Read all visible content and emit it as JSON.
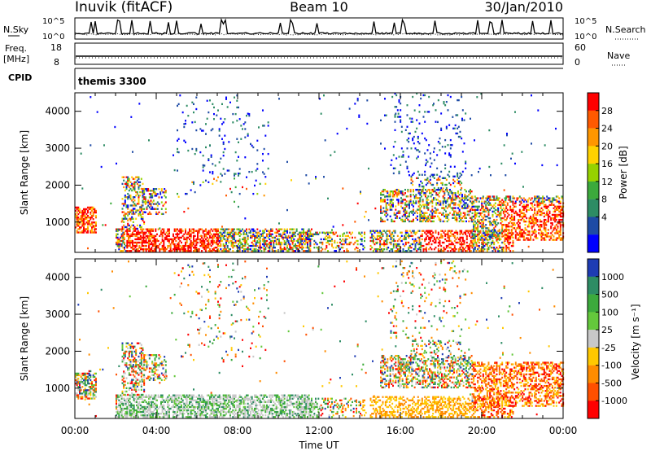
{
  "header": {
    "station": "Inuvik (fitACF)",
    "beam": "Beam 10",
    "date": "30/Jan/2010"
  },
  "top_panels": {
    "nsky_label": "N.Sky",
    "nsky_ticks": [
      "10^5",
      "10^0"
    ],
    "nsearch_label": "N.Search",
    "nsearch_ticks": [
      "10^5",
      "10^0"
    ],
    "freq_label": "Freq.",
    "freq_unit": "[MHz]",
    "freq_ticks": [
      "18",
      "8"
    ],
    "nave_label": "Nave",
    "nave_ticks": [
      "60",
      "0"
    ],
    "cpid_label": "CPID",
    "cpid_value": "themis 3300"
  },
  "chart_data": [
    {
      "type": "heatmap",
      "ylabel": "Slant Range [km]",
      "yticks": [
        1000,
        2000,
        3000,
        4000
      ],
      "ylim": [
        180,
        4500
      ],
      "xlim": [
        0,
        24
      ],
      "colorbar": {
        "title": "Power [dB]",
        "ticks": [
          "28",
          "24",
          "20",
          "16",
          "12",
          "8",
          "4"
        ],
        "colors": [
          "#ff0000",
          "#ff5a00",
          "#ff9600",
          "#ffd200",
          "#96d200",
          "#3caa3c",
          "#2d8c64",
          "#1e4ba5",
          "#0000ff"
        ]
      }
    },
    {
      "type": "heatmap",
      "ylabel": "Slant Range [km]",
      "xlabel": "Time UT",
      "xticks": [
        "00:00",
        "04:00",
        "08:00",
        "12:00",
        "16:00",
        "20:00",
        "00:00"
      ],
      "yticks": [
        1000,
        2000,
        3000,
        4000
      ],
      "ylim": [
        180,
        4500
      ],
      "xlim": [
        0,
        24
      ],
      "colorbar": {
        "title": "Velocity [m s⁻¹]",
        "ticks": [
          "1000",
          "500",
          "100",
          "25",
          "-25",
          "-100",
          "-500",
          "-1000"
        ],
        "colors": [
          "#1e3cb4",
          "#2d8c64",
          "#3caa3c",
          "#64c83c",
          "#c8c8c8",
          "#ffc800",
          "#ff8c00",
          "#ff5000",
          "#ff0000"
        ]
      }
    }
  ]
}
